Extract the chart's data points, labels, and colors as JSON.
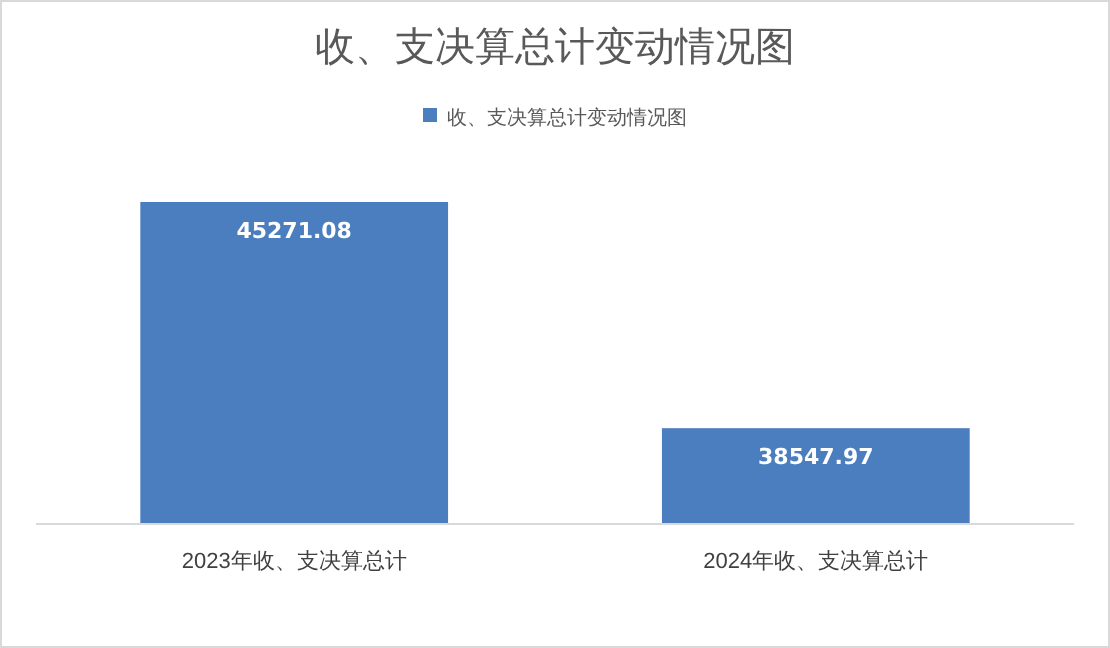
{
  "chart_data": {
    "type": "bar",
    "title": "收、支决算总计变动情况图",
    "categories": [
      "2023年收、支决算总计",
      "2024年收、支决算总计"
    ],
    "series": [
      {
        "name": "收、支决算总计变动情况图",
        "color": "#4a7ebf",
        "values": [
          45271.08,
          38547.97
        ]
      }
    ],
    "ylim": [
      35700,
      45271.08
    ],
    "data_labels": true,
    "legend": "top",
    "grid": false
  }
}
